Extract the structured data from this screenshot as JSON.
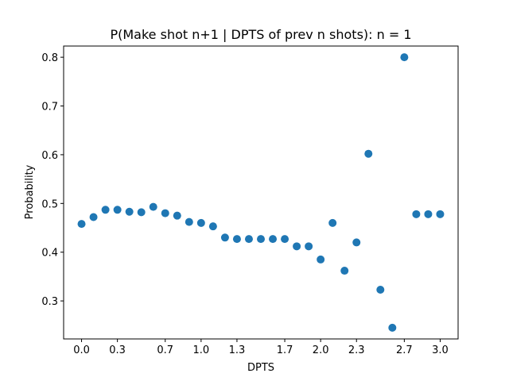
{
  "chart_data": {
    "type": "scatter",
    "title": "P(Make shot n+1 | DPTS of prev n shots): n = 1",
    "xlabel": "DPTS",
    "ylabel": "Probability",
    "xlim": [
      -0.15,
      3.15
    ],
    "ylim": [
      0.222,
      0.823
    ],
    "x_ticks": [
      0.0,
      0.3,
      0.7,
      1.0,
      1.3,
      1.7,
      2.0,
      2.3,
      2.7,
      3.0
    ],
    "x_tick_labels": [
      "0.0",
      "0.3",
      "0.7",
      "1.0",
      "1.3",
      "1.7",
      "2.0",
      "2.3",
      "2.7",
      "3.0"
    ],
    "y_ticks": [
      0.3,
      0.4,
      0.5,
      0.6,
      0.7,
      0.8
    ],
    "y_tick_labels": [
      "0.3",
      "0.4",
      "0.5",
      "0.6",
      "0.7",
      "0.8"
    ],
    "grid": false,
    "marker_color": "#1f77b4",
    "series": [
      {
        "x": [
          0.0,
          0.1,
          0.2,
          0.3,
          0.4,
          0.5,
          0.6,
          0.7,
          0.8,
          0.9,
          1.0,
          1.1,
          1.2,
          1.3,
          1.4,
          1.5,
          1.6,
          1.7,
          1.8,
          1.9,
          2.0,
          2.1,
          2.2,
          2.3,
          2.4,
          2.5,
          2.6,
          2.7,
          2.8,
          2.9,
          3.0
        ],
        "y": [
          0.458,
          0.472,
          0.487,
          0.487,
          0.483,
          0.482,
          0.493,
          0.48,
          0.475,
          0.462,
          0.46,
          0.453,
          0.43,
          0.427,
          0.427,
          0.427,
          0.427,
          0.427,
          0.412,
          0.412,
          0.385,
          0.46,
          0.362,
          0.42,
          0.602,
          0.323,
          0.245,
          0.8,
          0.478,
          0.478,
          0.478
        ]
      }
    ]
  }
}
